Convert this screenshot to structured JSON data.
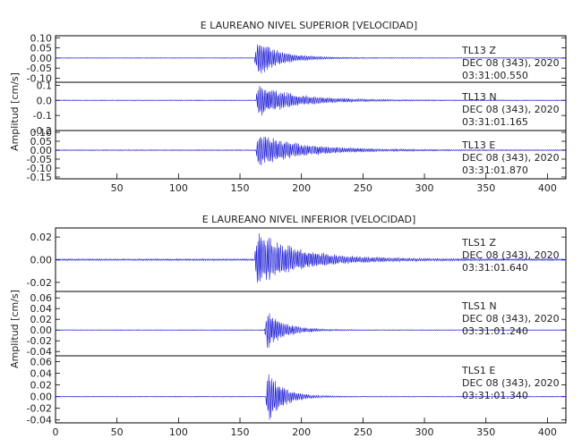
{
  "chart_data": [
    {
      "type": "line",
      "title": "E LAUREANO NIVEL SUPERIOR [VELOCIDAD]",
      "ylabel": "Amplitud [cm/s]",
      "xlim": [
        0,
        415
      ],
      "x_ticks": [
        50,
        100,
        150,
        200,
        250,
        300,
        350,
        400
      ],
      "panels": [
        {
          "station": "TL13",
          "component": "Z",
          "date": "DEC 08 (343), 2020",
          "time": "03:31:00.550",
          "ylim": [
            -0.12,
            0.11
          ],
          "y_ticks": [
            0.1,
            0.05,
            0.0,
            -0.05,
            -0.1
          ],
          "y_tick_labels": [
            "0.10",
            "0.05",
            "0.00",
            "-0.05",
            "-0.10"
          ],
          "color": "#1f1fd6",
          "envelope": {
            "onset_time": 162,
            "peak_amplitude": 0.11,
            "noise_amplitude": 0.002,
            "decay": 18,
            "end_time": 415
          }
        },
        {
          "station": "TL13",
          "component": "N",
          "date": "DEC 08 (343), 2020",
          "time": "03:31:01.165",
          "ylim": [
            -0.2,
            0.12
          ],
          "y_ticks": [
            0.1,
            0.0,
            -0.1,
            -0.2
          ],
          "y_tick_labels": [
            "0.1",
            "0.0",
            "-0.1",
            "-0.2"
          ],
          "color": "#1f1fd6",
          "envelope": {
            "onset_time": 163,
            "peak_amplitude": 0.12,
            "noise_amplitude": 0.003,
            "decay": 30,
            "end_time": 415
          }
        },
        {
          "station": "TL13",
          "component": "E",
          "date": "DEC 08 (343), 2020",
          "time": "03:31:01.870",
          "ylim": [
            -0.16,
            0.11
          ],
          "y_ticks": [
            0.1,
            0.05,
            0.0,
            -0.05,
            -0.1,
            -0.15
          ],
          "y_tick_labels": [
            "0.10",
            "0.05",
            "0.00",
            "-0.05",
            "-0.10",
            "-0.15"
          ],
          "color": "#1f1fd6",
          "envelope": {
            "onset_time": 163,
            "peak_amplitude": 0.1,
            "noise_amplitude": 0.003,
            "decay": 35,
            "end_time": 415
          }
        }
      ]
    },
    {
      "type": "line",
      "title": "E LAUREANO NIVEL INFERIOR [VELOCIDAD]",
      "ylabel": "Amplitud [cm/s]",
      "xlim": [
        0,
        415
      ],
      "x_ticks": [
        0,
        50,
        100,
        150,
        200,
        250,
        300,
        350,
        400
      ],
      "panels": [
        {
          "station": "TLS1",
          "component": "Z",
          "date": "DEC 08 (343), 2020",
          "time": "03:31:01.640",
          "ylim": [
            -0.028,
            0.028
          ],
          "y_ticks": [
            0.02,
            0.0,
            -0.02
          ],
          "y_tick_labels": [
            "0.02",
            "0.00",
            "-0.02"
          ],
          "color": "#1f1fd6",
          "envelope": {
            "onset_time": 162,
            "peak_amplitude": 0.027,
            "noise_amplitude": 0.0008,
            "decay": 35,
            "end_time": 415
          }
        },
        {
          "station": "TLS1",
          "component": "N",
          "date": "DEC 08 (343), 2020",
          "time": "03:31:01.240",
          "ylim": [
            -0.048,
            0.072
          ],
          "y_ticks": [
            0.06,
            0.04,
            0.02,
            0.0,
            -0.02,
            -0.04
          ],
          "y_tick_labels": [
            "0.06",
            "0.04",
            "0.02",
            "0.00",
            "-0.02",
            "-0.04"
          ],
          "color": "#1f1fd6",
          "envelope": {
            "onset_time": 170,
            "peak_amplitude": 0.045,
            "noise_amplitude": 0.0008,
            "decay": 14,
            "end_time": 415
          }
        },
        {
          "station": "TLS1",
          "component": "E",
          "date": "DEC 08 (343), 2020",
          "time": "03:31:01.340",
          "ylim": [
            -0.045,
            0.07
          ],
          "y_ticks": [
            0.06,
            0.04,
            0.02,
            0.0,
            -0.02,
            -0.04
          ],
          "y_tick_labels": [
            "0.06",
            "0.04",
            "0.02",
            "0.00",
            "-0.02",
            "-0.04"
          ],
          "color": "#1f1fd6",
          "envelope": {
            "onset_time": 171,
            "peak_amplitude": 0.055,
            "noise_amplitude": 0.0008,
            "decay": 12,
            "end_time": 415
          }
        }
      ]
    }
  ]
}
